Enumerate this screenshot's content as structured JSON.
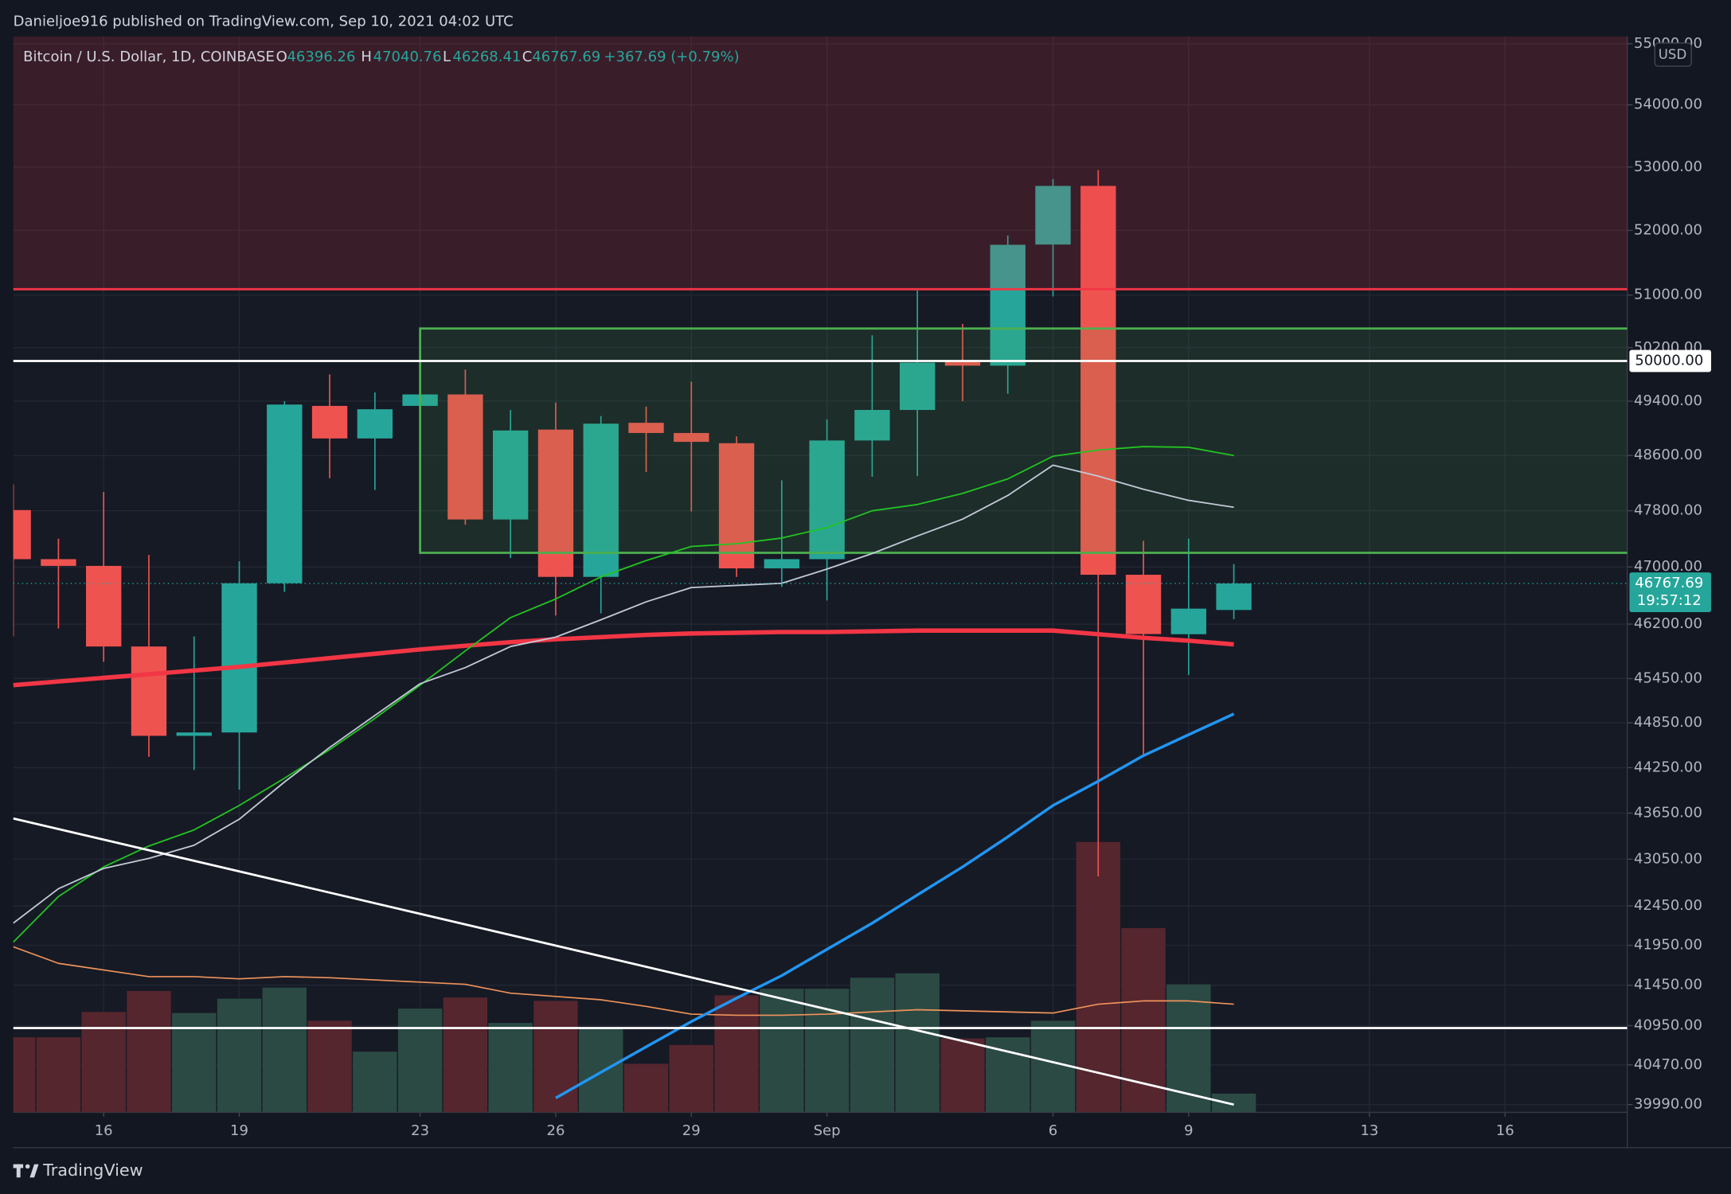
{
  "chart_data": {
    "type": "candlestick",
    "publisher_line": "Danieljoe916 published on TradingView.com, Sep 10, 2021 04:02 UTC",
    "title": "Bitcoin / U.S. Dollar, 1D, COINBASE",
    "ohlc_labels": [
      "O",
      "H",
      "L",
      "C"
    ],
    "change_label": "+367.69 (+0.79%)",
    "currency": "USD",
    "brand": "TradingView",
    "categories": [
      null,
      null,
      "16",
      null,
      null,
      "19",
      null,
      null,
      null,
      "23",
      null,
      null,
      "26",
      null,
      null,
      "29",
      null,
      null,
      "Sep",
      null,
      null,
      null,
      null,
      "6",
      null,
      null,
      "9",
      null,
      null,
      null,
      "13",
      null,
      null,
      "16",
      null,
      null
    ],
    "open": [
      47810,
      47110,
      47015,
      45890,
      44675,
      44720,
      46770,
      49330,
      48850,
      49330,
      49500,
      47675,
      48980,
      46860,
      49080,
      48930,
      48780,
      46980,
      47110,
      48820,
      49270,
      49990,
      49930,
      51780,
      52700,
      46890,
      46060,
      46396.26,
      null,
      null,
      null,
      null,
      null,
      null,
      null,
      null
    ],
    "high": [
      48180,
      47400,
      48070,
      47170,
      46030,
      47080,
      49400,
      49800,
      49530,
      49560,
      49870,
      49270,
      49380,
      49180,
      49320,
      49690,
      48880,
      48240,
      49130,
      50387,
      51070,
      50560,
      51920,
      52810,
      52950,
      47370,
      47400,
      47040.76,
      null,
      null,
      null,
      null,
      null,
      null,
      null,
      null
    ],
    "low": [
      46030,
      46140,
      45680,
      44395,
      44220,
      43957,
      46650,
      48270,
      48100,
      49300,
      47600,
      47125,
      46320,
      46350,
      48360,
      47790,
      46860,
      46720,
      46530,
      48290,
      48300,
      49400,
      49510,
      50980,
      42827,
      44420,
      45500,
      46268.41,
      null,
      null,
      null,
      null,
      null,
      null,
      null,
      null
    ],
    "close": [
      47110,
      47015,
      45890,
      44675,
      44720,
      46770,
      49350,
      48850,
      49280,
      49500,
      47675,
      48967,
      46860,
      49067,
      48930,
      48800,
      46980,
      47110,
      48820,
      49270,
      49976,
      49930,
      51776,
      52700,
      46890,
      46062,
      46415,
      46767.69,
      null,
      null,
      null,
      null,
      null,
      null,
      null,
      null
    ],
    "up_color": "#26a69a",
    "down_color": "#ef5350",
    "volume": [
      68,
      68,
      91,
      110,
      90,
      103,
      113,
      83,
      55,
      94,
      104,
      81,
      101,
      77,
      44,
      61,
      106,
      112,
      112,
      122,
      126,
      67,
      68,
      83,
      245,
      167,
      116,
      17,
      null,
      null,
      null,
      null,
      null,
      null,
      null,
      null
    ],
    "volume_ylim": [
      0,
      975
    ],
    "volume_up_color": "#2b4a44",
    "volume_down_color": "#55262e",
    "volume_line": {
      "color": "#f0935a",
      "values": [
        150,
        135,
        129,
        123,
        123,
        121,
        123,
        122,
        120,
        118,
        116,
        108,
        105,
        102,
        96,
        89,
        88,
        88,
        89,
        91,
        93,
        92,
        91,
        90,
        98,
        101,
        101,
        98,
        null,
        null,
        null,
        null,
        null,
        null,
        null,
        null
      ]
    },
    "lines": [
      {
        "color": "#f23645",
        "width": 4,
        "values": [
          45360,
          45410,
          45460,
          45510,
          45560,
          45610,
          45670,
          45730,
          45790,
          45850,
          45900,
          45950,
          45990,
          46020,
          46050,
          46070,
          46080,
          46090,
          46090,
          46100,
          46110,
          46110,
          46110,
          46110,
          46060,
          46010,
          45970,
          45920,
          null,
          null,
          null,
          null,
          null,
          null,
          null,
          null
        ]
      },
      {
        "color": "#2196f3",
        "width": 2.5,
        "values": [
          null,
          null,
          null,
          null,
          null,
          null,
          null,
          null,
          null,
          null,
          null,
          null,
          40070,
          40380,
          40690,
          41000,
          41290,
          41570,
          41900,
          42230,
          42590,
          42950,
          43340,
          43750,
          44070,
          44410,
          44690,
          44970,
          null,
          null,
          null,
          null,
          null,
          null,
          null,
          null
        ]
      },
      {
        "color": "#22c422",
        "width": 1.3,
        "values": [
          41990,
          42570,
          42950,
          43220,
          43430,
          43750,
          44110,
          44490,
          44910,
          45360,
          45830,
          46290,
          46550,
          46860,
          47090,
          47290,
          47330,
          47410,
          47560,
          47800,
          47890,
          48050,
          48260,
          48590,
          48680,
          48730,
          48720,
          48600,
          null,
          null,
          null,
          null,
          null,
          null,
          null,
          null
        ]
      },
      {
        "color": "#c3cad8",
        "width": 1.3,
        "values": [
          42230,
          42670,
          42930,
          43060,
          43230,
          43570,
          44060,
          44520,
          44950,
          45380,
          45600,
          45890,
          46020,
          46260,
          46510,
          46710,
          46740,
          46770,
          46970,
          47190,
          47440,
          47680,
          48020,
          48460,
          48300,
          48110,
          47950,
          47850,
          null,
          null,
          null,
          null,
          null,
          null,
          null,
          null
        ]
      }
    ],
    "zone": {
      "from": 51090,
      "color": "rgba(242,54,69,0.16)"
    },
    "box": {
      "x_start": 9,
      "top": 50490,
      "bottom": 47200,
      "color": "#4caf50"
    },
    "levels": [
      {
        "value": 51090,
        "color": "#f23645"
      },
      {
        "value": 50000,
        "color": "#ffffff",
        "label": "50000.00"
      },
      {
        "value": 40920,
        "color": "#ffffff"
      }
    ],
    "trendline": {
      "x": [
        0,
        27
      ],
      "y": [
        43580,
        39990
      ],
      "color": "#ffffff"
    },
    "countdown": "19:57:12",
    "log_scale": true,
    "grid": true,
    "ylim": [
      39897,
      55121
    ],
    "yticks": [
      {
        "value": 55000,
        "label": "55000.00"
      },
      {
        "value": 54000,
        "label": "54000.00"
      },
      {
        "value": 53000,
        "label": "53000.00"
      },
      {
        "value": 52000,
        "label": "52000.00"
      },
      {
        "value": 51000,
        "label": "51000.00"
      },
      {
        "value": 50200,
        "label": "50200.00"
      },
      {
        "value": 49400,
        "label": "49400.00"
      },
      {
        "value": 48600,
        "label": "48600.00"
      },
      {
        "value": 47800,
        "label": "47800.00"
      },
      {
        "value": 47000,
        "label": "47000.00"
      },
      {
        "value": 46200,
        "label": "46200.00"
      },
      {
        "value": 45450,
        "label": "45450.00"
      },
      {
        "value": 44850,
        "label": "44850.00"
      },
      {
        "value": 44250,
        "label": "44250.00"
      },
      {
        "value": 43650,
        "label": "43650.00"
      },
      {
        "value": 43050,
        "label": "43050.00"
      },
      {
        "value": 42450,
        "label": "42450.00"
      },
      {
        "value": 41950,
        "label": "41950.00"
      },
      {
        "value": 41450,
        "label": "41450.00"
      },
      {
        "value": 40950,
        "label": "40950.00"
      },
      {
        "value": 40470,
        "label": "40470.00"
      },
      {
        "value": 39990,
        "label": "39990.00"
      }
    ]
  }
}
